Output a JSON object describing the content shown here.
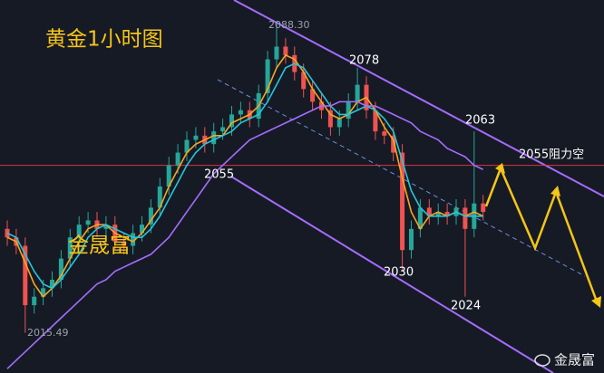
{
  "chart_data": {
    "type": "candlestick",
    "title": "黄金1小时图",
    "watermark": "金晟富",
    "footer": "金晟富",
    "ylim": [
      2006,
      2094
    ],
    "open": [
      2040,
      2038,
      2036,
      2022,
      2024,
      2026,
      2028,
      2033,
      2038,
      2041,
      2042,
      2040,
      2041,
      2037,
      2036,
      2039,
      2041,
      2045,
      2050,
      2055,
      2058,
      2061,
      2062,
      2060,
      2063,
      2064,
      2067,
      2068,
      2066,
      2072,
      2080,
      2083,
      2081,
      2077,
      2073,
      2070,
      2068,
      2064,
      2066,
      2070,
      2074,
      2068,
      2063,
      2062,
      2058,
      2035,
      2040,
      2045,
      2043,
      2044,
      2043,
      2045,
      2040,
      2046
    ],
    "high": [
      2042,
      2040,
      2038,
      2026,
      2028,
      2030,
      2035,
      2040,
      2043,
      2044,
      2044,
      2043,
      2043,
      2039,
      2041,
      2043,
      2047,
      2052,
      2057,
      2060,
      2063,
      2064,
      2064,
      2065,
      2066,
      2069,
      2070,
      2070,
      2074,
      2082,
      2088.3,
      2085,
      2083,
      2079,
      2075,
      2072,
      2070,
      2068,
      2072,
      2078,
      2076,
      2070,
      2065,
      2064,
      2060,
      2042,
      2047,
      2047,
      2046,
      2046,
      2047,
      2047,
      2063,
      2048
    ],
    "low": [
      2036,
      2034,
      2015.49,
      2020,
      2022,
      2024,
      2026,
      2031,
      2036,
      2039,
      2038,
      2038,
      2035,
      2034,
      2034,
      2037,
      2039,
      2043,
      2048,
      2053,
      2056,
      2059,
      2058,
      2058,
      2061,
      2062,
      2065,
      2064,
      2064,
      2070,
      2078,
      2079,
      2075,
      2071,
      2068,
      2066,
      2062,
      2062,
      2064,
      2068,
      2066,
      2061,
      2060,
      2056,
      2030,
      2033,
      2038,
      2041,
      2041,
      2041,
      2041,
      2024,
      2038,
      2042
    ],
    "close": [
      2038,
      2036,
      2022,
      2024,
      2026,
      2028,
      2033,
      2038,
      2041,
      2042,
      2040,
      2041,
      2037,
      2036,
      2039,
      2041,
      2045,
      2050,
      2055,
      2058,
      2061,
      2062,
      2060,
      2063,
      2064,
      2067,
      2068,
      2066,
      2072,
      2080,
      2083,
      2081,
      2077,
      2073,
      2070,
      2068,
      2064,
      2066,
      2070,
      2074,
      2068,
      2063,
      2062,
      2058,
      2035,
      2040,
      2045,
      2043,
      2044,
      2043,
      2045,
      2040,
      2046,
      2044
    ],
    "up_color": "#26a69a",
    "down_color": "#ef5350",
    "series": [
      {
        "color": "#f5a623",
        "values": [
          2038,
          2037,
          2032,
          2027,
          2024,
          2026,
          2029,
          2033,
          2037,
          2040,
          2041,
          2041,
          2039,
          2038,
          2037,
          2039,
          2042,
          2045,
          2050,
          2054,
          2058,
          2060,
          2061,
          2062,
          2062,
          2065,
          2066,
          2067,
          2069,
          2073,
          2078,
          2081,
          2080,
          2077,
          2073,
          2070,
          2067,
          2066,
          2067,
          2070,
          2071,
          2068,
          2064,
          2061,
          2052,
          2044,
          2040,
          2043,
          2044,
          2043,
          2044,
          2043,
          2044,
          2043
        ]
      },
      {
        "color": "#26c6da",
        "values": [
          2039,
          2038,
          2034,
          2030,
          2027,
          2026,
          2028,
          2031,
          2034,
          2038,
          2040,
          2041,
          2040,
          2039,
          2038,
          2038,
          2040,
          2043,
          2047,
          2051,
          2055,
          2058,
          2060,
          2061,
          2062,
          2063,
          2065,
          2066,
          2067,
          2070,
          2074,
          2078,
          2079,
          2078,
          2075,
          2072,
          2069,
          2067,
          2067,
          2068,
          2069,
          2068,
          2066,
          2063,
          2056,
          2049,
          2045,
          2043,
          2043,
          2043,
          2044,
          2043,
          2043,
          2043
        ]
      },
      {
        "color": "#a66cff",
        "values": [
          2007,
          2009,
          2011,
          2013,
          2015,
          2017,
          2019,
          2021,
          2023,
          2025,
          2027,
          2028,
          2030,
          2031,
          2032,
          2033,
          2034,
          2036,
          2038,
          2041,
          2044,
          2047,
          2050,
          2053,
          2055,
          2057,
          2059,
          2061,
          2062,
          2063,
          2064,
          2065,
          2066,
          2067,
          2068,
          2069,
          2069,
          2070,
          2070,
          2070,
          2069,
          2069,
          2068,
          2067,
          2066,
          2065,
          2063,
          2062,
          2061,
          2059,
          2058,
          2057,
          2055,
          2054
        ]
      }
    ],
    "resistance": 2055,
    "annotations": [
      "2088.30",
      "2078",
      "2063",
      "2055阻力空",
      "2055",
      "2030",
      "2024",
      "2015.49"
    ]
  }
}
